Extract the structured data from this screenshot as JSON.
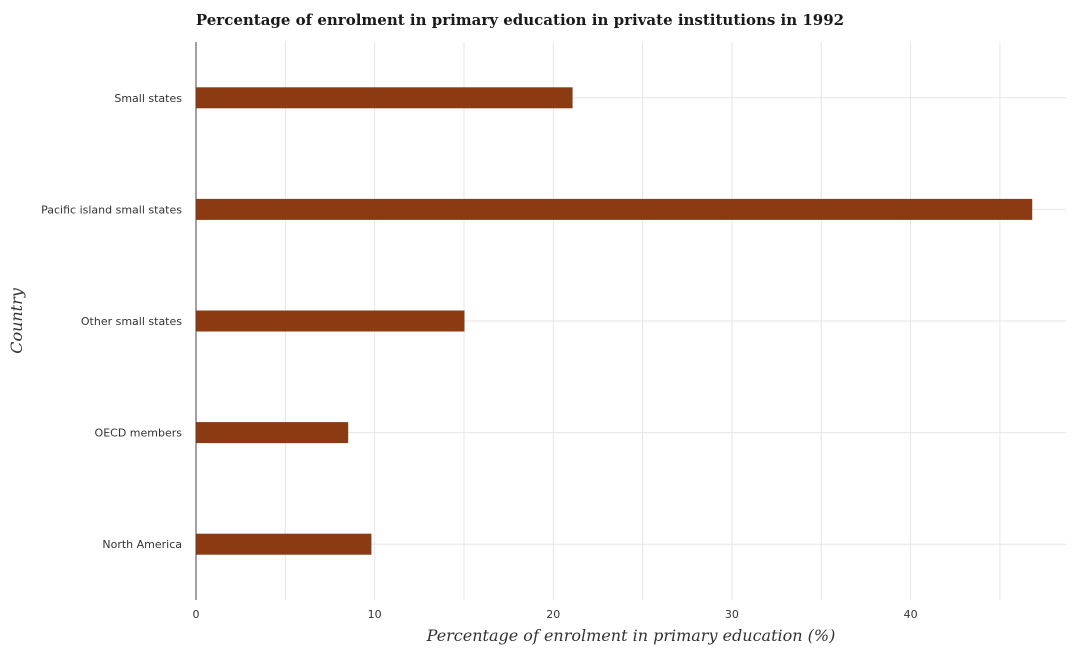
{
  "chart_data": {
    "type": "bar",
    "orientation": "horizontal",
    "title": "Percentage of enrolment in primary education in private institutions in 1992",
    "xlabel": "Percentage of enrolment in primary education (%)",
    "ylabel": "Country",
    "categories": [
      "North America",
      "OECD members",
      "Other small states",
      "Pacific island small states",
      "Small states"
    ],
    "values": [
      9.82,
      8.52,
      15.03,
      46.81,
      21.08
    ],
    "xlim": [
      0,
      48.7
    ],
    "xticks": [
      "0",
      "10",
      "20",
      "30",
      "40"
    ],
    "grid": true,
    "bar_color": "#8B3A12"
  }
}
